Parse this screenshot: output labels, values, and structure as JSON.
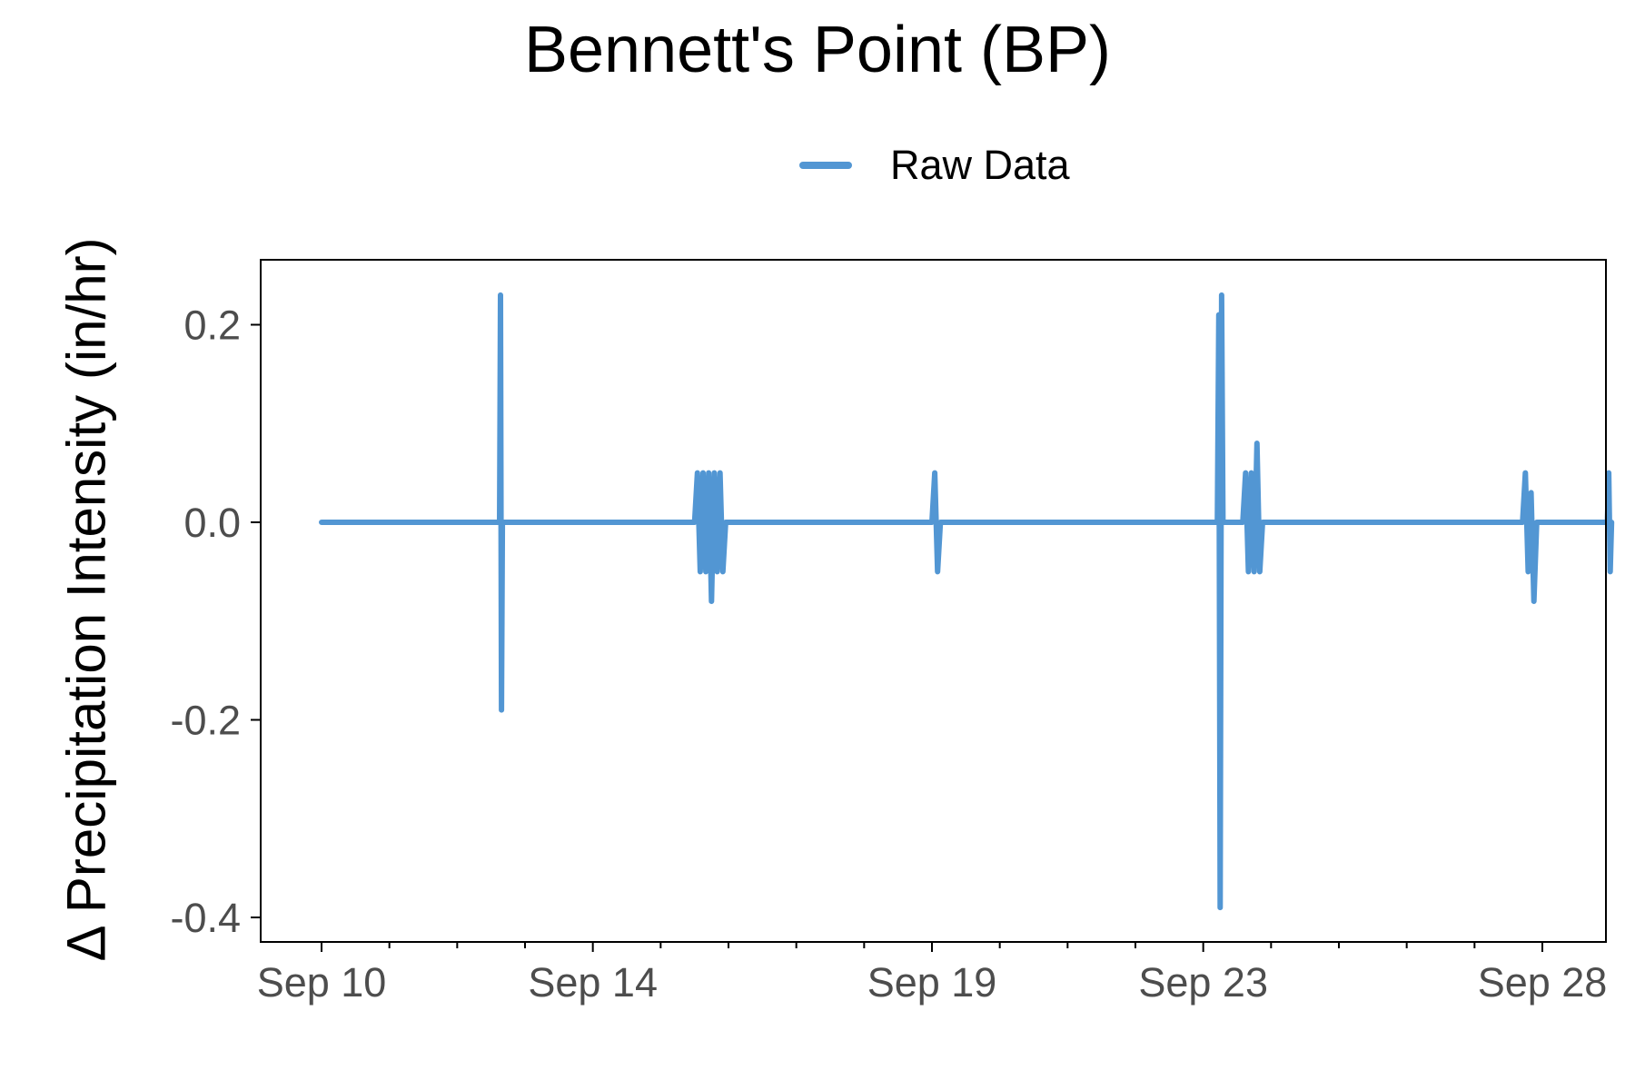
{
  "chart_data": {
    "type": "line",
    "title": "Bennett's Point (BP)",
    "xlabel": "",
    "ylabel": "Δ Precipitation Intensity (in/hr)",
    "legend": {
      "position": "top",
      "entries": [
        "Raw Data"
      ]
    },
    "colors": {
      "series": "#5296d3",
      "axis": "#000000",
      "tick_label": "#4d4d4d"
    },
    "grid": false,
    "xlim": [
      "2023-09-10",
      "2023-09-28"
    ],
    "ylim": [
      -0.41,
      0.26
    ],
    "x_ticks": [
      {
        "date": "2023-09-10",
        "label": "Sep 10"
      },
      {
        "date": "2023-09-14",
        "label": "Sep 14"
      },
      {
        "date": "2023-09-19",
        "label": "Sep 19"
      },
      {
        "date": "2023-09-23",
        "label": "Sep 23"
      },
      {
        "date": "2023-09-28",
        "label": "Sep 28"
      }
    ],
    "y_ticks": [
      {
        "value": 0.2,
        "label": "0.2"
      },
      {
        "value": 0.0,
        "label": "0.0"
      },
      {
        "value": -0.2,
        "label": "-0.2"
      },
      {
        "value": -0.4,
        "label": "-0.4"
      }
    ],
    "series": [
      {
        "name": "Raw Data",
        "points": [
          [
            "2023-09-10T00:00",
            0
          ],
          [
            "2023-09-12T15:00",
            0
          ],
          [
            "2023-09-12T15:20",
            0.23
          ],
          [
            "2023-09-12T15:40",
            -0.19
          ],
          [
            "2023-09-12T16:00",
            0
          ],
          [
            "2023-09-15T12:00",
            0
          ],
          [
            "2023-09-15T13:00",
            0.05
          ],
          [
            "2023-09-15T14:00",
            -0.05
          ],
          [
            "2023-09-15T15:00",
            0.05
          ],
          [
            "2023-09-15T16:00",
            -0.05
          ],
          [
            "2023-09-15T17:00",
            0.05
          ],
          [
            "2023-09-15T18:00",
            -0.08
          ],
          [
            "2023-09-15T19:00",
            0.05
          ],
          [
            "2023-09-15T20:00",
            -0.05
          ],
          [
            "2023-09-15T21:00",
            0.05
          ],
          [
            "2023-09-15T22:00",
            -0.05
          ],
          [
            "2023-09-15T23:00",
            0
          ],
          [
            "2023-09-19T00:00",
            0
          ],
          [
            "2023-09-19T01:00",
            0.05
          ],
          [
            "2023-09-19T02:00",
            -0.05
          ],
          [
            "2023-09-19T03:00",
            0
          ],
          [
            "2023-09-23T05:00",
            0
          ],
          [
            "2023-09-23T05:30",
            0.21
          ],
          [
            "2023-09-23T06:00",
            -0.39
          ],
          [
            "2023-09-23T06:30",
            0.23
          ],
          [
            "2023-09-23T07:00",
            0
          ],
          [
            "2023-09-23T14:00",
            0
          ],
          [
            "2023-09-23T15:00",
            0.05
          ],
          [
            "2023-09-23T16:00",
            -0.05
          ],
          [
            "2023-09-23T17:00",
            0.05
          ],
          [
            "2023-09-23T18:00",
            -0.05
          ],
          [
            "2023-09-23T19:00",
            0.08
          ],
          [
            "2023-09-23T20:00",
            -0.05
          ],
          [
            "2023-09-23T21:00",
            0
          ],
          [
            "2023-09-27T17:00",
            0
          ],
          [
            "2023-09-27T18:00",
            0.05
          ],
          [
            "2023-09-27T19:00",
            -0.05
          ],
          [
            "2023-09-27T20:00",
            0.03
          ],
          [
            "2023-09-27T21:00",
            -0.08
          ],
          [
            "2023-09-27T22:00",
            0
          ],
          [
            "2023-09-28T23:00",
            0
          ],
          [
            "2023-09-28T23:30",
            0.05
          ],
          [
            "2023-09-29T00:00",
            -0.05
          ],
          [
            "2023-09-29T00:30",
            0
          ]
        ]
      }
    ]
  }
}
